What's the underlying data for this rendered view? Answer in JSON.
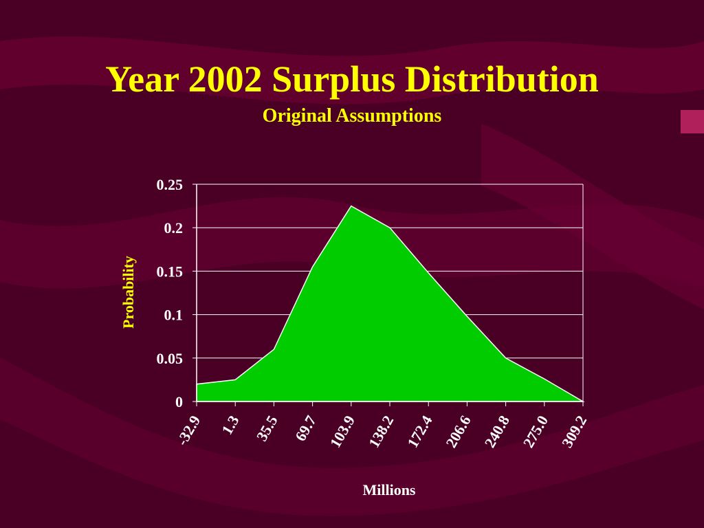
{
  "slide": {
    "title": "Year 2002 Surplus Distribution",
    "subtitle": "Original Assumptions"
  },
  "colors": {
    "background": "#4a0024",
    "swoosh": "#6b0035",
    "title": "#ffff00",
    "area_fill": "#00cc00",
    "area_stroke": "#ffffff",
    "gridline": "#ffffff"
  },
  "chart_data": {
    "type": "area",
    "xlabel": "Millions",
    "ylabel": "Probability",
    "categories": [
      "-32.9",
      "1.3",
      "35.5",
      "69.7",
      "103.9",
      "138.2",
      "172.4",
      "206.6",
      "240.8",
      "275.0",
      "309.2"
    ],
    "values": [
      0.02,
      0.025,
      0.06,
      0.155,
      0.225,
      0.2,
      0.148,
      0.098,
      0.05,
      0.026,
      0.0
    ],
    "ylim": [
      0,
      0.25
    ],
    "yticks": [
      "0",
      "0.05",
      "0.1",
      "0.15",
      "0.2",
      "0.25"
    ],
    "grid": true,
    "legend": "none"
  }
}
